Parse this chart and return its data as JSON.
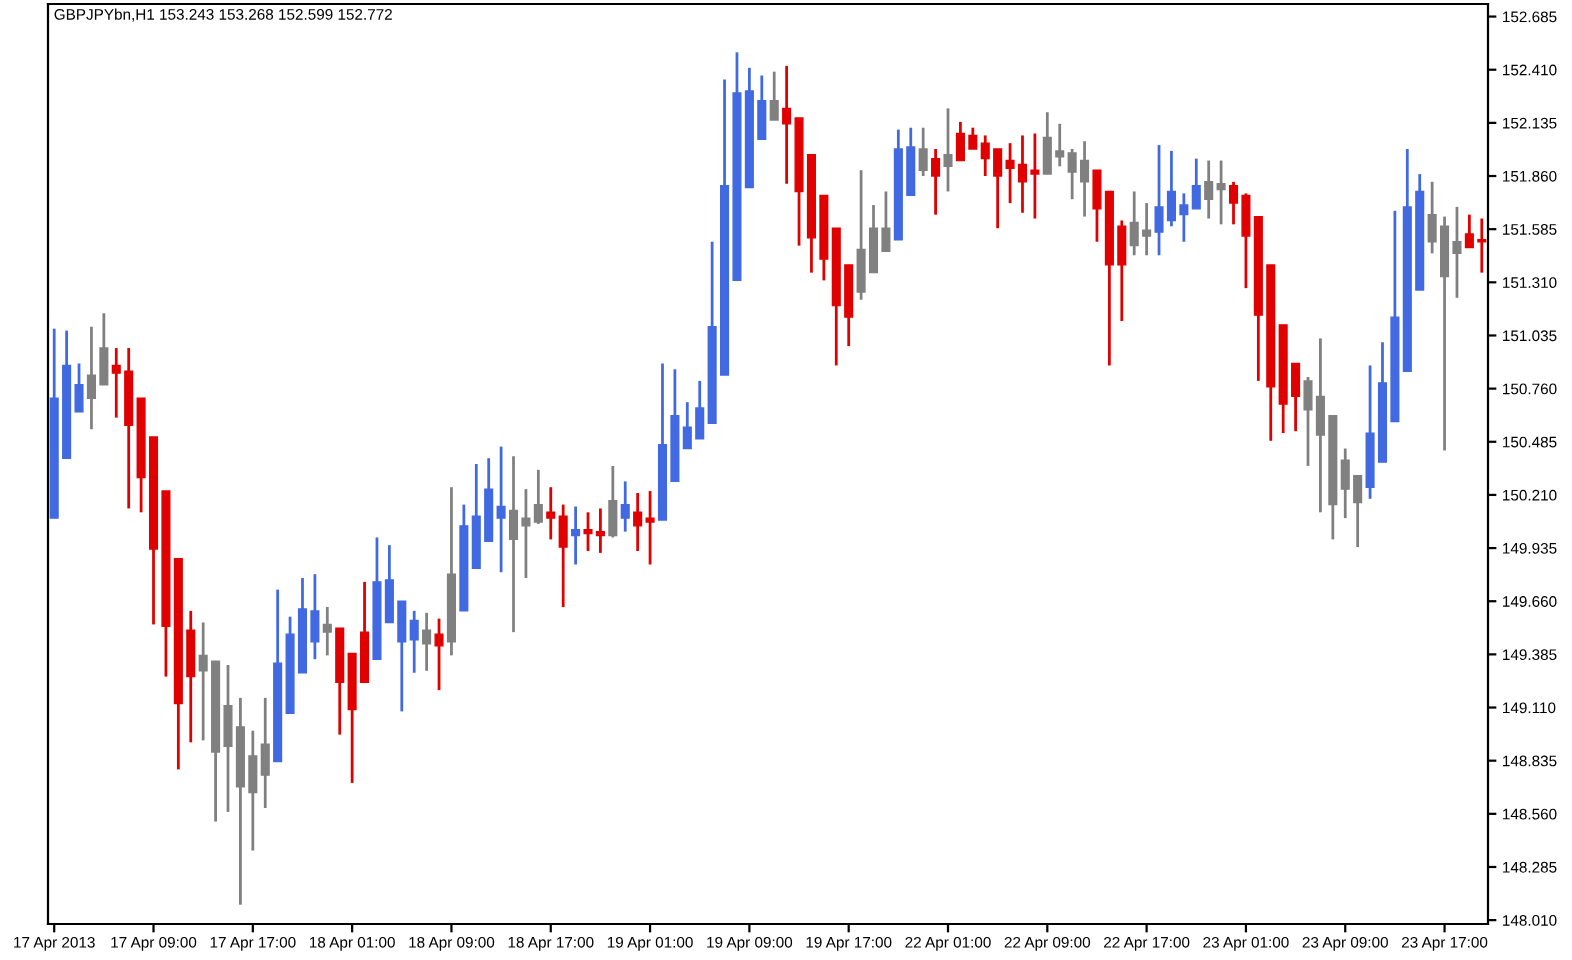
{
  "chart_data": {
    "type": "candlestick",
    "title": "GBPJPYbn,H1 153.243 153.268 152.599 152.772",
    "categories": [
      "17 Apr 2013",
      null,
      null,
      null,
      null,
      null,
      null,
      null,
      "17 Apr 09:00",
      null,
      null,
      null,
      null,
      null,
      null,
      null,
      "17 Apr 17:00",
      null,
      null,
      null,
      null,
      null,
      null,
      null,
      "18 Apr 01:00",
      null,
      null,
      null,
      null,
      null,
      null,
      null,
      "18 Apr 09:00",
      null,
      null,
      null,
      null,
      null,
      null,
      null,
      "18 Apr 17:00",
      null,
      null,
      null,
      null,
      null,
      null,
      null,
      "19 Apr 01:00",
      null,
      null,
      null,
      null,
      null,
      null,
      null,
      "19 Apr 09:00",
      null,
      null,
      null,
      null,
      null,
      null,
      null,
      "19 Apr 17:00",
      null,
      null,
      null,
      null,
      null,
      null,
      null,
      "22 Apr 01:00",
      null,
      null,
      null,
      null,
      null,
      null,
      null,
      "22 Apr 09:00",
      null,
      null,
      null,
      null,
      null,
      null,
      null,
      "22 Apr 17:00",
      null,
      null,
      null,
      null,
      null,
      null,
      null,
      "23 Apr 01:00",
      null,
      null,
      null,
      null,
      null,
      null,
      null,
      "23 Apr 09:00",
      null,
      null,
      null,
      null,
      null,
      null,
      null,
      "23 Apr 17:00",
      null,
      null,
      null
    ],
    "ohlc": [
      [
        150.09,
        151.07,
        150.09,
        150.71
      ],
      [
        150.4,
        151.06,
        150.4,
        150.88
      ],
      [
        150.64,
        150.89,
        150.64,
        150.78
      ],
      [
        150.71,
        151.08,
        150.55,
        150.83
      ],
      [
        150.78,
        151.15,
        150.78,
        150.97
      ],
      [
        150.88,
        150.97,
        150.61,
        150.84
      ],
      [
        150.85,
        150.97,
        150.14,
        150.57
      ],
      [
        150.71,
        150.71,
        150.12,
        150.3
      ],
      [
        150.51,
        150.51,
        149.54,
        149.93
      ],
      [
        150.23,
        150.23,
        149.27,
        149.53
      ],
      [
        149.88,
        149.88,
        148.79,
        149.13
      ],
      [
        149.51,
        149.61,
        148.93,
        149.27
      ],
      [
        149.3,
        149.55,
        148.94,
        149.38
      ],
      [
        149.35,
        149.35,
        148.52,
        148.88
      ],
      [
        148.91,
        149.33,
        148.57,
        149.12
      ],
      [
        149.01,
        149.16,
        148.09,
        148.7
      ],
      [
        148.67,
        148.99,
        148.37,
        148.86
      ],
      [
        148.76,
        149.16,
        148.59,
        148.92
      ],
      [
        148.83,
        149.72,
        148.83,
        149.34
      ],
      [
        149.08,
        149.58,
        149.08,
        149.49
      ],
      [
        149.29,
        149.78,
        149.29,
        149.62
      ],
      [
        149.45,
        149.8,
        149.36,
        149.61
      ],
      [
        149.54,
        149.63,
        149.38,
        149.5
      ],
      [
        149.52,
        149.52,
        148.97,
        149.24
      ],
      [
        149.39,
        149.39,
        148.72,
        149.1
      ],
      [
        149.5,
        149.76,
        149.24,
        149.24
      ],
      [
        149.36,
        149.99,
        149.36,
        149.76
      ],
      [
        149.55,
        149.95,
        149.55,
        149.77
      ],
      [
        149.45,
        149.66,
        149.09,
        149.66
      ],
      [
        149.46,
        149.61,
        149.29,
        149.56
      ],
      [
        149.51,
        149.6,
        149.3,
        149.44
      ],
      [
        149.49,
        149.57,
        149.2,
        149.43
      ],
      [
        149.45,
        150.25,
        149.38,
        149.8
      ],
      [
        149.61,
        150.16,
        149.61,
        150.05
      ],
      [
        149.83,
        150.37,
        149.83,
        150.1
      ],
      [
        149.97,
        150.4,
        149.97,
        150.24
      ],
      [
        150.09,
        150.46,
        149.81,
        150.15
      ],
      [
        150.13,
        150.41,
        149.5,
        149.98
      ],
      [
        150.05,
        150.24,
        149.78,
        150.09
      ],
      [
        150.07,
        150.34,
        150.06,
        150.16
      ],
      [
        150.12,
        150.25,
        149.98,
        150.09
      ],
      [
        150.1,
        150.16,
        149.63,
        149.94
      ],
      [
        150.0,
        150.15,
        149.85,
        150.03
      ],
      [
        150.03,
        150.12,
        149.92,
        150.01
      ],
      [
        150.02,
        150.14,
        149.91,
        150.0
      ],
      [
        150.0,
        150.36,
        149.99,
        150.18
      ],
      [
        150.09,
        150.28,
        150.02,
        150.16
      ],
      [
        150.12,
        150.22,
        149.92,
        150.05
      ],
      [
        150.09,
        150.23,
        149.85,
        150.07
      ],
      [
        150.08,
        150.89,
        150.08,
        150.47
      ],
      [
        150.28,
        150.86,
        150.28,
        150.62
      ],
      [
        150.45,
        150.69,
        150.45,
        150.56
      ],
      [
        150.5,
        150.8,
        150.5,
        150.66
      ],
      [
        150.58,
        151.52,
        150.58,
        151.08
      ],
      [
        150.83,
        152.36,
        150.83,
        151.81
      ],
      [
        151.32,
        152.5,
        151.32,
        152.29
      ],
      [
        151.8,
        152.42,
        151.8,
        152.3
      ],
      [
        152.05,
        152.38,
        152.05,
        152.25
      ],
      [
        152.25,
        152.4,
        152.15,
        152.15
      ],
      [
        152.21,
        152.43,
        151.82,
        152.13
      ],
      [
        152.16,
        152.16,
        151.5,
        151.78
      ],
      [
        151.97,
        151.97,
        151.36,
        151.54
      ],
      [
        151.76,
        151.76,
        151.32,
        151.43
      ],
      [
        151.59,
        151.59,
        150.88,
        151.19
      ],
      [
        151.4,
        151.4,
        150.98,
        151.13
      ],
      [
        151.26,
        151.89,
        151.22,
        151.48
      ],
      [
        151.36,
        151.71,
        151.36,
        151.59
      ],
      [
        151.59,
        151.78,
        151.47,
        151.47
      ],
      [
        151.53,
        152.1,
        151.53,
        152.0
      ],
      [
        151.76,
        152.11,
        151.76,
        152.01
      ],
      [
        152.0,
        152.11,
        151.86,
        151.89
      ],
      [
        151.95,
        152.0,
        151.66,
        151.86
      ],
      [
        151.91,
        152.21,
        151.78,
        151.97
      ],
      [
        152.08,
        152.14,
        151.94,
        151.94
      ],
      [
        152.07,
        152.11,
        152.0,
        152.0
      ],
      [
        152.03,
        152.07,
        151.86,
        151.95
      ],
      [
        152.0,
        152.0,
        151.59,
        151.86
      ],
      [
        151.94,
        152.03,
        151.72,
        151.9
      ],
      [
        151.92,
        152.07,
        151.67,
        151.83
      ],
      [
        151.89,
        152.08,
        151.64,
        151.87
      ],
      [
        151.87,
        152.19,
        151.87,
        152.06
      ],
      [
        151.99,
        152.13,
        151.91,
        151.96
      ],
      [
        151.98,
        152.0,
        151.74,
        151.88
      ],
      [
        151.94,
        152.04,
        151.65,
        151.83
      ],
      [
        151.89,
        151.89,
        151.52,
        151.69
      ],
      [
        151.78,
        151.78,
        150.88,
        151.4
      ],
      [
        151.6,
        151.63,
        151.11,
        151.4
      ],
      [
        151.5,
        151.78,
        151.45,
        151.62
      ],
      [
        151.58,
        151.72,
        151.45,
        151.55
      ],
      [
        151.57,
        152.02,
        151.45,
        151.7
      ],
      [
        151.63,
        151.99,
        151.6,
        151.78
      ],
      [
        151.66,
        151.77,
        151.52,
        151.71
      ],
      [
        151.69,
        151.95,
        151.69,
        151.81
      ],
      [
        151.74,
        151.94,
        151.64,
        151.83
      ],
      [
        151.82,
        151.94,
        151.61,
        151.79
      ],
      [
        151.81,
        151.83,
        151.61,
        151.72
      ],
      [
        151.76,
        151.77,
        151.28,
        151.55
      ],
      [
        151.65,
        151.65,
        150.8,
        151.14
      ],
      [
        151.4,
        151.4,
        150.49,
        150.77
      ],
      [
        151.09,
        151.09,
        150.53,
        150.68
      ],
      [
        150.89,
        150.89,
        150.54,
        150.72
      ],
      [
        150.8,
        150.82,
        150.36,
        150.65
      ],
      [
        150.72,
        151.02,
        150.12,
        150.52
      ],
      [
        150.62,
        150.62,
        149.98,
        150.16
      ],
      [
        150.24,
        150.45,
        150.09,
        150.39
      ],
      [
        150.31,
        150.31,
        149.94,
        150.17
      ],
      [
        150.25,
        150.88,
        150.19,
        150.53
      ],
      [
        150.38,
        151.0,
        150.38,
        150.79
      ],
      [
        150.59,
        151.68,
        150.59,
        151.13
      ],
      [
        150.85,
        152.0,
        150.85,
        151.7
      ],
      [
        151.27,
        151.87,
        151.27,
        151.78
      ],
      [
        151.66,
        151.83,
        151.46,
        151.52
      ],
      [
        151.6,
        151.65,
        150.44,
        151.34
      ],
      [
        151.46,
        151.7,
        151.23,
        151.52
      ],
      [
        151.56,
        151.66,
        151.49,
        151.49
      ],
      [
        151.53,
        151.64,
        151.36,
        151.52
      ]
    ],
    "colors": [
      "#4169e1",
      "#4169e1",
      "#4169e1",
      "#808080",
      "#808080",
      "#e10000",
      "#e10000",
      "#e10000",
      "#e10000",
      "#e10000",
      "#e10000",
      "#e10000",
      "#808080",
      "#808080",
      "#808080",
      "#808080",
      "#808080",
      "#808080",
      "#4169e1",
      "#4169e1",
      "#4169e1",
      "#4169e1",
      "#808080",
      "#e10000",
      "#e10000",
      "#e10000",
      "#4169e1",
      "#4169e1",
      "#4169e1",
      "#4169e1",
      "#808080",
      "#e10000",
      "#808080",
      "#4169e1",
      "#4169e1",
      "#4169e1",
      "#4169e1",
      "#808080",
      "#808080",
      "#808080",
      "#e10000",
      "#e10000",
      "#4169e1",
      "#e10000",
      "#e10000",
      "#808080",
      "#4169e1",
      "#e10000",
      "#e10000",
      "#4169e1",
      "#4169e1",
      "#4169e1",
      "#4169e1",
      "#4169e1",
      "#4169e1",
      "#4169e1",
      "#4169e1",
      "#4169e1",
      "#808080",
      "#e10000",
      "#e10000",
      "#e10000",
      "#e10000",
      "#e10000",
      "#e10000",
      "#808080",
      "#808080",
      "#808080",
      "#4169e1",
      "#4169e1",
      "#808080",
      "#e10000",
      "#808080",
      "#e10000",
      "#e10000",
      "#e10000",
      "#e10000",
      "#e10000",
      "#e10000",
      "#e10000",
      "#808080",
      "#808080",
      "#808080",
      "#808080",
      "#e10000",
      "#e10000",
      "#e10000",
      "#808080",
      "#808080",
      "#4169e1",
      "#4169e1",
      "#4169e1",
      "#4169e1",
      "#808080",
      "#808080",
      "#e10000",
      "#e10000",
      "#e10000",
      "#e10000",
      "#e10000",
      "#e10000",
      "#808080",
      "#808080",
      "#808080",
      "#808080",
      "#808080",
      "#4169e1",
      "#4169e1",
      "#4169e1",
      "#4169e1",
      "#4169e1",
      "#808080",
      "#808080",
      "#808080",
      "#e10000",
      "#e10000"
    ],
    "ylim": [
      147.99,
      152.75
    ],
    "yticks": [
      152.685,
      {
        "value": 152.41,
        "label": "152.410"
      },
      152.135,
      {
        "value": 151.86,
        "label": "151.860"
      },
      151.585,
      {
        "value": 151.31,
        "label": "151.310"
      },
      151.035,
      {
        "value": 150.76,
        "label": "150.760"
      },
      150.485,
      {
        "value": 150.21,
        "label": "150.210"
      },
      149.935,
      {
        "value": 149.66,
        "label": "149.660"
      },
      149.385,
      {
        "value": 149.11,
        "label": "149.110"
      },
      148.835,
      {
        "value": 148.56,
        "label": "148.560"
      },
      148.285,
      {
        "value": 148.01,
        "label": "148.010"
      }
    ]
  }
}
